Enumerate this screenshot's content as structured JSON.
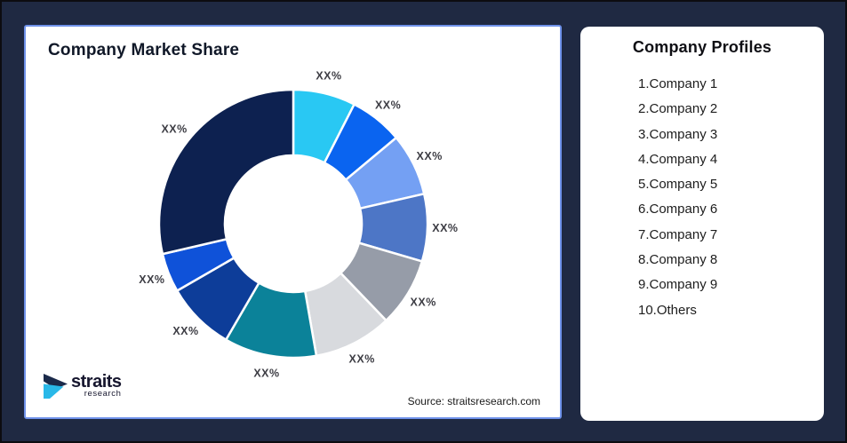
{
  "theme": {
    "page_background": "#1f2942",
    "page_border": "#0c0c10",
    "card_background": "#ffffff",
    "chart_card_border": "#6f92ea",
    "title_color": "#101828",
    "slice_label_color": "#3d3d44",
    "logo_navy": "#1b2a4a",
    "logo_cyan": "#29b8e8"
  },
  "chart_card": {
    "title": "Company Market Share",
    "source": "Source: straitsresearch.com"
  },
  "logo": {
    "wordmark": "straits",
    "subtext": "research"
  },
  "profiles_card": {
    "title": "Company Profiles",
    "items": [
      "1.Company 1",
      "2.Company 2",
      "3.Company 3",
      "4.Company 4",
      "5.Company 5",
      "6.Company 6",
      "7.Company 7",
      "8.Company 8",
      "9.Company 9",
      "10.Others"
    ]
  },
  "chart_data": {
    "type": "pie",
    "subtype": "donut",
    "title": "Company Market Share",
    "start_angle_deg": 0,
    "direction": "clockwise",
    "inner_radius_ratio": 0.51,
    "legend_position": "none",
    "slices": [
      {
        "name": "Company 1",
        "label": "XX%",
        "est_percent": 7.5,
        "color": "#29c8f3"
      },
      {
        "name": "Company 2",
        "label": "XX%",
        "est_percent": 6.4,
        "color": "#0a64f0"
      },
      {
        "name": "Company 3",
        "label": "XX%",
        "est_percent": 7.5,
        "color": "#74a0f3"
      },
      {
        "name": "Company 4",
        "label": "XX%",
        "est_percent": 8.1,
        "color": "#4d76c6"
      },
      {
        "name": "Company 5",
        "label": "XX%",
        "est_percent": 8.3,
        "color": "#969ca8"
      },
      {
        "name": "Company 6",
        "label": "XX%",
        "est_percent": 9.4,
        "color": "#d8dade"
      },
      {
        "name": "Company 7",
        "label": "XX%",
        "est_percent": 11.1,
        "color": "#0b8299"
      },
      {
        "name": "Company 8",
        "label": "XX%",
        "est_percent": 8.3,
        "color": "#0d3d99"
      },
      {
        "name": "Company 9",
        "label": "XX%",
        "est_percent": 4.7,
        "color": "#0f52d9"
      },
      {
        "name": "Others",
        "label": "XX%",
        "est_percent": 28.6,
        "color": "#0d2150"
      }
    ]
  }
}
